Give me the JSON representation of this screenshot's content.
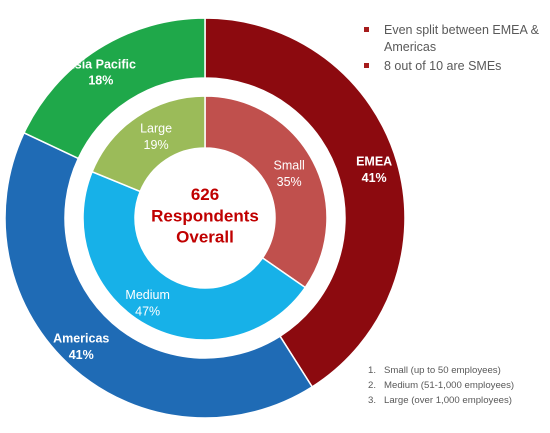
{
  "chart_data": {
    "type": "pie",
    "style": "nested-donut",
    "center_text": [
      "626",
      "Respondents",
      "Overall"
    ],
    "rings": [
      {
        "ring": "outer",
        "slices": [
          {
            "label": "EMEA",
            "value_label": "41%",
            "value": 41,
            "color": "#8c0a0f"
          },
          {
            "label": "Americas",
            "value_label": "41%",
            "value": 41,
            "color": "#1f6bb5"
          },
          {
            "label": "Asia Pacific",
            "value_label": "18%",
            "value": 18,
            "color": "#1fa84a"
          }
        ]
      },
      {
        "ring": "inner",
        "slices": [
          {
            "label": "Small",
            "value_label": "35%",
            "value": 35,
            "color": "#c0504d"
          },
          {
            "label": "Medium",
            "value_label": "47%",
            "value": 47,
            "color": "#17b1e8"
          },
          {
            "label": "Large",
            "value_label": "19%",
            "value": 19,
            "color": "#9bbb59"
          }
        ]
      }
    ],
    "colors": {
      "center_text": "#c00000",
      "bullet": "#a61c1c"
    }
  },
  "bullets": [
    "Even split between EMEA & Americas",
    "8 out of 10 are SMEs"
  ],
  "notes": [
    {
      "num": "1.",
      "text": "Small (up to 50 employees)"
    },
    {
      "num": "2.",
      "text": "Medium (51-1,000 employees)"
    },
    {
      "num": "3.",
      "text": "Large (over 1,000 employees)"
    }
  ]
}
